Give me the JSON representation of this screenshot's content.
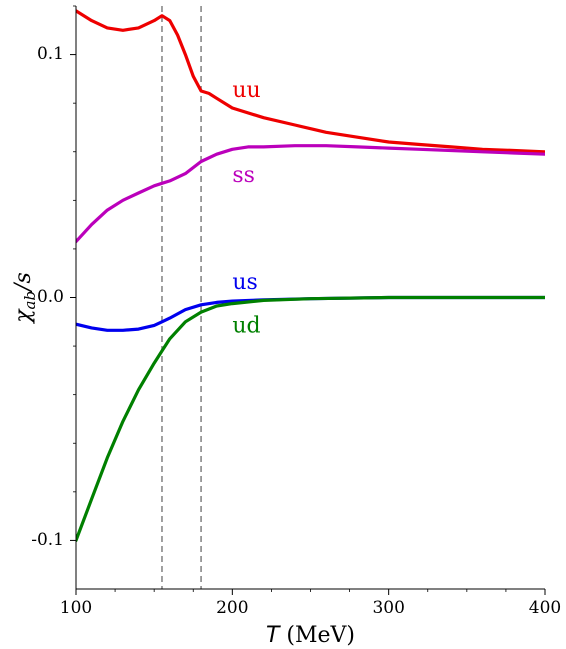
{
  "chart_data": {
    "type": "line",
    "xlabel": "T (MeV)",
    "xlabel_var": "T",
    "xlabel_unit": "(MeV)",
    "ylabel": "χab/s",
    "ylabel_base": "χ",
    "ylabel_sub": "ab",
    "ylabel_rest": "/s",
    "xlim": [
      100,
      400
    ],
    "ylim": [
      -0.12,
      0.12
    ],
    "x_ticks": [
      100,
      200,
      300,
      400
    ],
    "x_tick_labels": [
      "100",
      "200",
      "300",
      "400"
    ],
    "y_ticks": [
      -0.1,
      0.0,
      0.1
    ],
    "y_tick_labels": [
      "-0.1",
      "0.0",
      "0.1"
    ],
    "grid": false,
    "vertical_lines": [
      155,
      180
    ],
    "series": [
      {
        "name": "uu",
        "color": "#ee0000",
        "label_position": [
          200,
          0.085
        ],
        "points": [
          [
            100,
            0.118
          ],
          [
            110,
            0.114
          ],
          [
            120,
            0.111
          ],
          [
            130,
            0.11
          ],
          [
            140,
            0.111
          ],
          [
            150,
            0.114
          ],
          [
            155,
            0.116
          ],
          [
            160,
            0.114
          ],
          [
            165,
            0.108
          ],
          [
            170,
            0.1
          ],
          [
            175,
            0.091
          ],
          [
            180,
            0.085
          ],
          [
            185,
            0.084
          ],
          [
            190,
            0.082
          ],
          [
            200,
            0.078
          ],
          [
            220,
            0.074
          ],
          [
            240,
            0.071
          ],
          [
            260,
            0.068
          ],
          [
            280,
            0.066
          ],
          [
            300,
            0.064
          ],
          [
            320,
            0.063
          ],
          [
            340,
            0.062
          ],
          [
            360,
            0.061
          ],
          [
            380,
            0.0605
          ],
          [
            400,
            0.06
          ]
        ]
      },
      {
        "name": "ss",
        "color": "#bb00bb",
        "label_position": [
          200,
          0.05
        ],
        "points": [
          [
            100,
            0.023
          ],
          [
            110,
            0.03
          ],
          [
            120,
            0.036
          ],
          [
            130,
            0.04
          ],
          [
            140,
            0.043
          ],
          [
            150,
            0.046
          ],
          [
            155,
            0.047
          ],
          [
            160,
            0.048
          ],
          [
            170,
            0.051
          ],
          [
            180,
            0.056
          ],
          [
            190,
            0.059
          ],
          [
            200,
            0.061
          ],
          [
            210,
            0.062
          ],
          [
            220,
            0.062
          ],
          [
            240,
            0.0625
          ],
          [
            260,
            0.0625
          ],
          [
            280,
            0.062
          ],
          [
            300,
            0.0615
          ],
          [
            320,
            0.061
          ],
          [
            340,
            0.0605
          ],
          [
            360,
            0.06
          ],
          [
            380,
            0.0595
          ],
          [
            400,
            0.059
          ]
        ]
      },
      {
        "name": "us",
        "color": "#0000ee",
        "label_position": [
          200,
          0.006
        ],
        "points": [
          [
            100,
            -0.011
          ],
          [
            110,
            -0.0125
          ],
          [
            120,
            -0.0135
          ],
          [
            130,
            -0.0135
          ],
          [
            140,
            -0.013
          ],
          [
            150,
            -0.0115
          ],
          [
            155,
            -0.01
          ],
          [
            160,
            -0.0085
          ],
          [
            170,
            -0.005
          ],
          [
            180,
            -0.003
          ],
          [
            190,
            -0.002
          ],
          [
            200,
            -0.0015
          ],
          [
            220,
            -0.001
          ],
          [
            250,
            -0.0005
          ],
          [
            300,
            0.0
          ],
          [
            350,
            0.0
          ],
          [
            400,
            0.0
          ]
        ]
      },
      {
        "name": "ud",
        "color": "#008000",
        "label_position": [
          200,
          -0.012
        ],
        "points": [
          [
            100,
            -0.1
          ],
          [
            110,
            -0.083
          ],
          [
            120,
            -0.066
          ],
          [
            130,
            -0.051
          ],
          [
            140,
            -0.038
          ],
          [
            150,
            -0.027
          ],
          [
            155,
            -0.022
          ],
          [
            160,
            -0.017
          ],
          [
            170,
            -0.01
          ],
          [
            180,
            -0.006
          ],
          [
            190,
            -0.0035
          ],
          [
            200,
            -0.0025
          ],
          [
            220,
            -0.0012
          ],
          [
            250,
            -0.0005
          ],
          [
            300,
            0.0
          ],
          [
            350,
            0.0
          ],
          [
            400,
            0.0
          ]
        ]
      }
    ]
  }
}
